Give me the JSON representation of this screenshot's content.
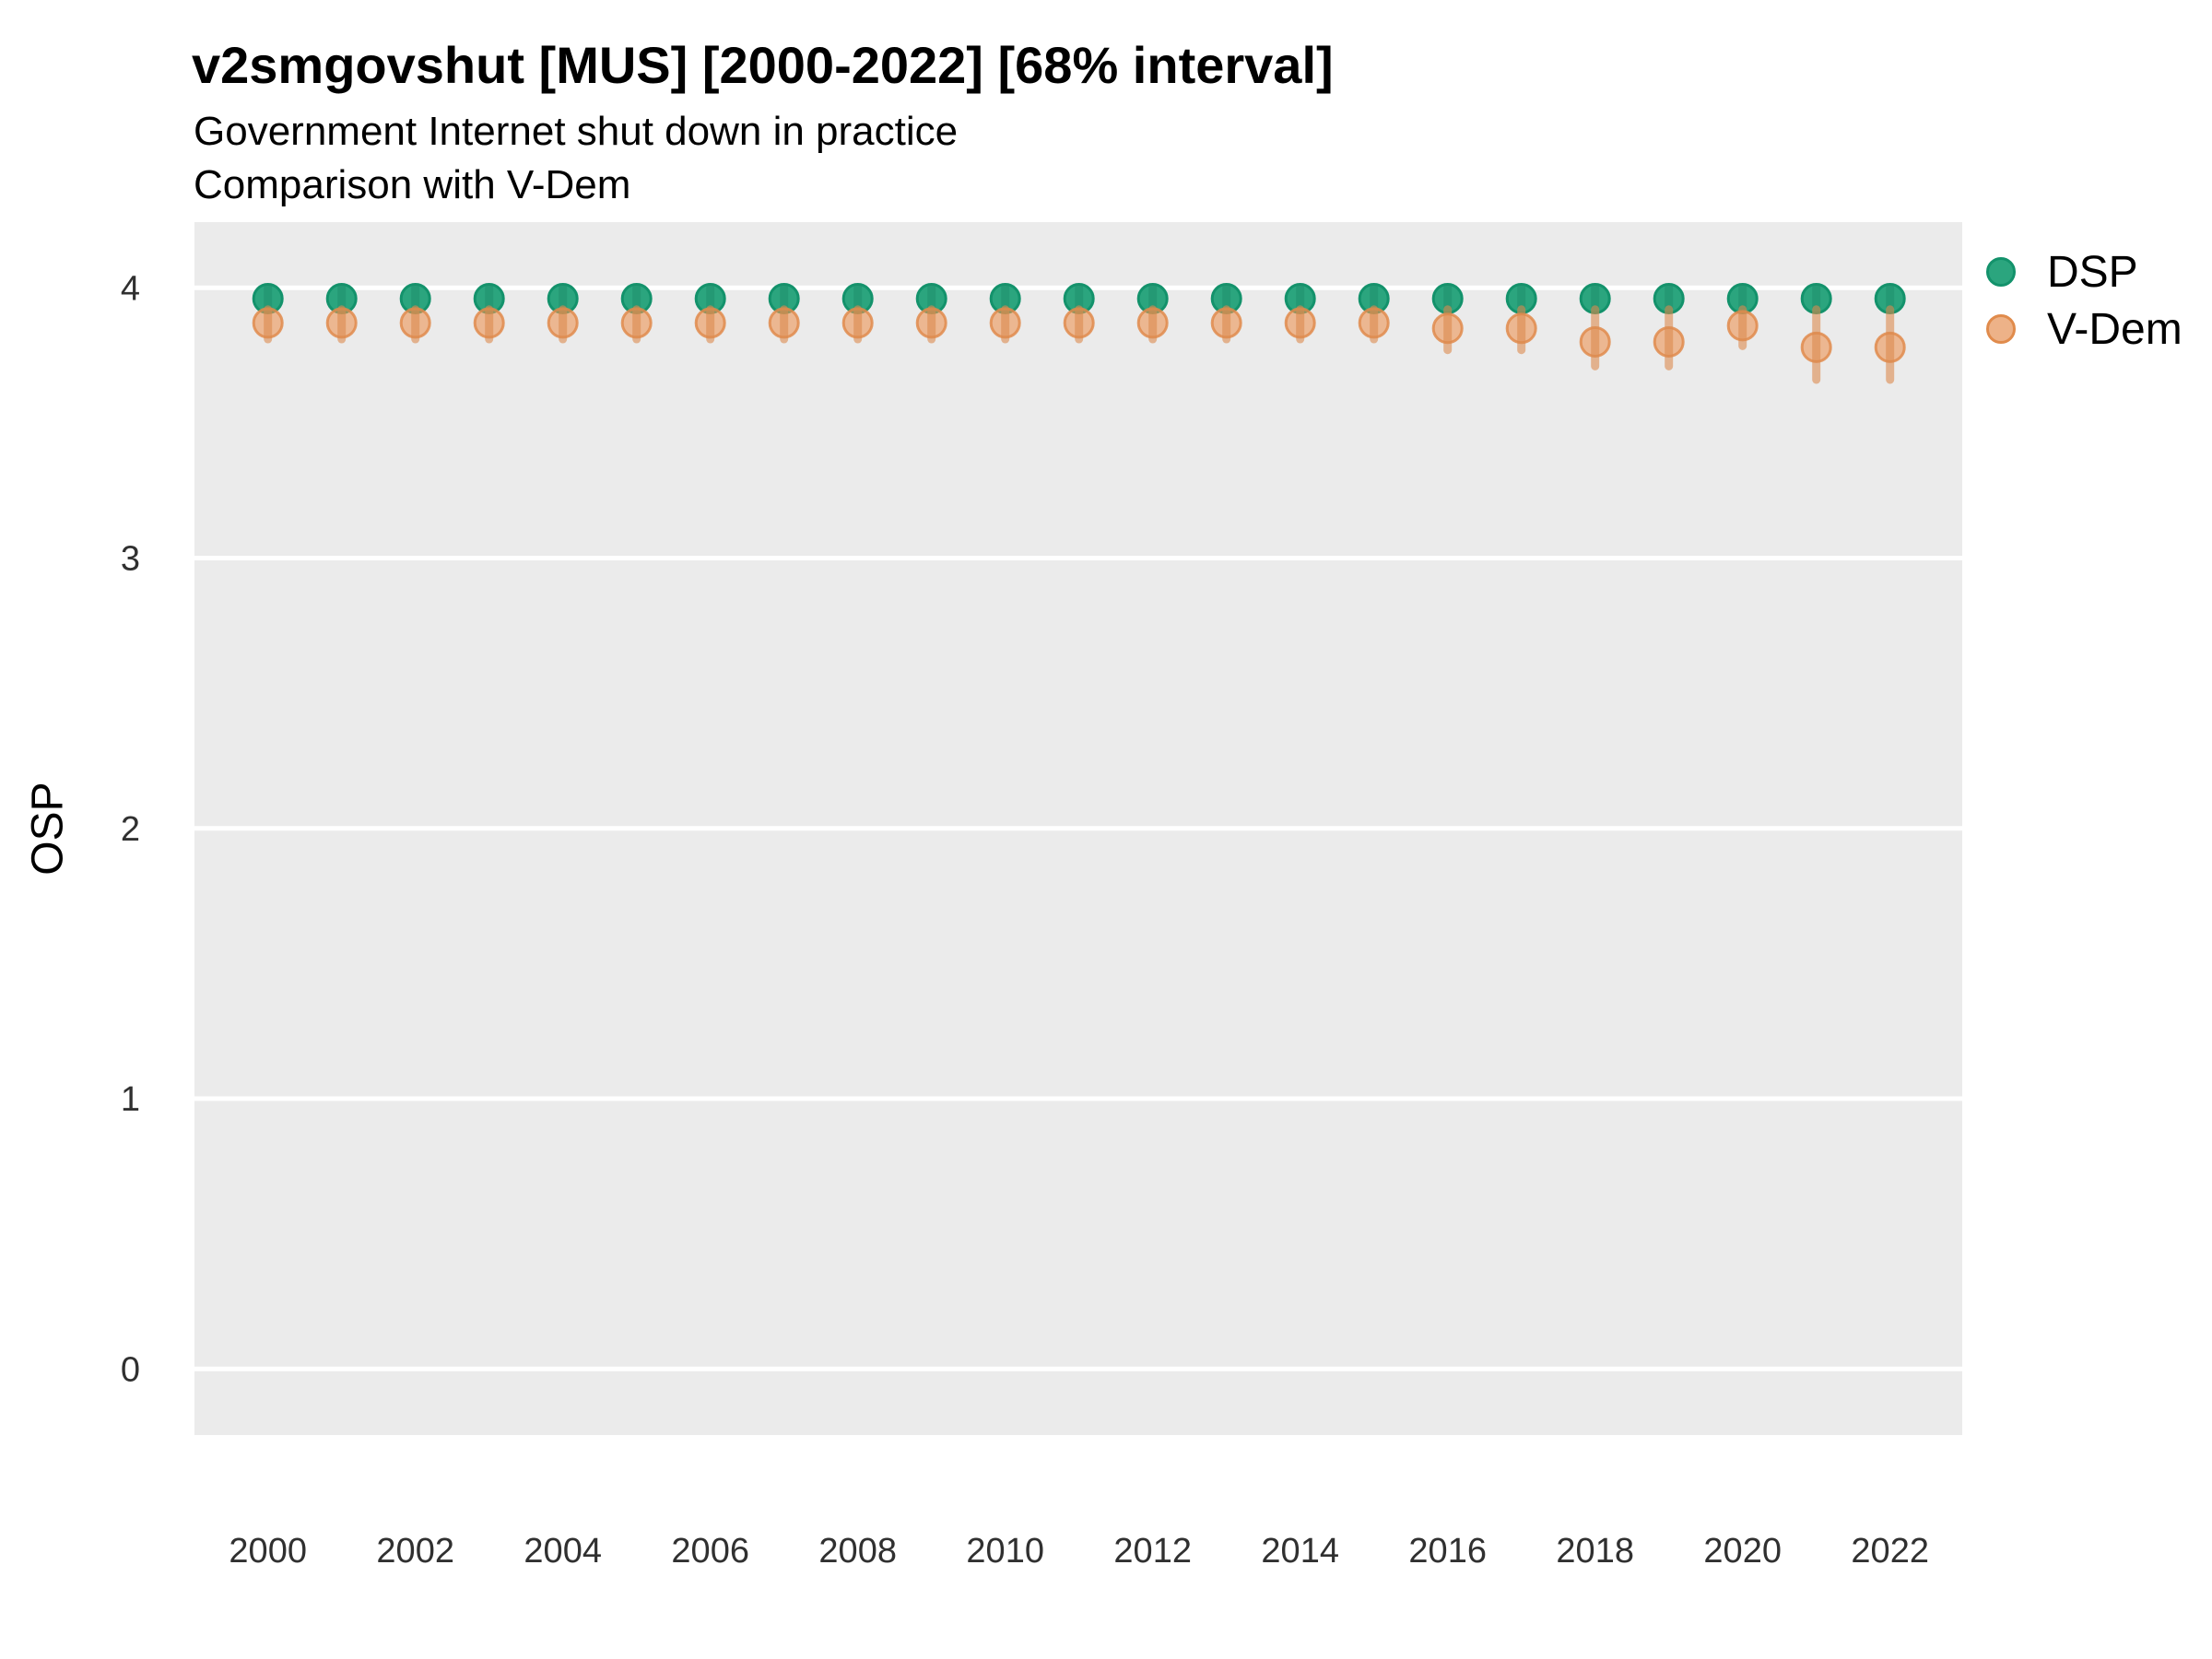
{
  "chart_data": {
    "type": "scatter",
    "title": "v2smgovshut [MUS] [2000-2022] [68% interval]",
    "subtitle": "Government Internet shut down in practice",
    "subtitle2": "Comparison with V-Dem",
    "ylabel": "OSP",
    "xlabel": "",
    "interval_label": "68% interval",
    "x": [
      2000,
      2001,
      2002,
      2003,
      2004,
      2005,
      2006,
      2007,
      2008,
      2009,
      2010,
      2011,
      2012,
      2013,
      2014,
      2015,
      2016,
      2017,
      2018,
      2019,
      2020,
      2021,
      2022
    ],
    "x_ticks": [
      2000,
      2002,
      2004,
      2006,
      2008,
      2010,
      2012,
      2014,
      2016,
      2018,
      2020,
      2022
    ],
    "x_tick_labels": [
      "2000",
      "2002",
      "2004",
      "2006",
      "2008",
      "2010",
      "2012",
      "2014",
      "2016",
      "2018",
      "2020",
      "2022"
    ],
    "yticks": [
      0,
      1,
      2,
      3,
      4
    ],
    "ytick_labels": [
      "0",
      "1",
      "2",
      "3",
      "4"
    ],
    "ylim": [
      -0.25,
      4.24
    ],
    "grid": "major horizontal white gridlines on gray panel, no minor, no axis lines",
    "legend_position": "right",
    "series": [
      {
        "name": "DSP",
        "values": [
          3.96,
          3.96,
          3.96,
          3.96,
          3.96,
          3.96,
          3.96,
          3.96,
          3.96,
          3.96,
          3.96,
          3.96,
          3.96,
          3.96,
          3.96,
          3.96,
          3.96,
          3.96,
          3.96,
          3.96,
          3.96,
          3.96,
          3.96
        ],
        "err_lo": [
          3.925,
          3.925,
          3.925,
          3.925,
          3.925,
          3.925,
          3.925,
          3.925,
          3.925,
          3.925,
          3.925,
          3.925,
          3.925,
          3.925,
          3.925,
          3.925,
          3.925,
          3.925,
          3.925,
          3.925,
          3.925,
          3.925,
          3.925
        ],
        "err_hi": [
          4.0,
          4.0,
          4.0,
          4.0,
          4.0,
          4.0,
          4.0,
          4.0,
          4.0,
          4.0,
          4.0,
          4.0,
          4.0,
          4.0,
          4.0,
          4.0,
          4.0,
          4.0,
          4.0,
          4.0,
          4.0,
          4.0,
          4.0
        ]
      },
      {
        "name": "V-Dem",
        "values": [
          3.87,
          3.87,
          3.87,
          3.87,
          3.87,
          3.87,
          3.87,
          3.87,
          3.87,
          3.87,
          3.87,
          3.87,
          3.87,
          3.87,
          3.87,
          3.87,
          3.85,
          3.85,
          3.8,
          3.8,
          3.86,
          3.78,
          3.78
        ],
        "err_lo": [
          3.81,
          3.81,
          3.81,
          3.81,
          3.81,
          3.81,
          3.81,
          3.81,
          3.81,
          3.81,
          3.81,
          3.81,
          3.81,
          3.81,
          3.81,
          3.81,
          3.77,
          3.77,
          3.71,
          3.71,
          3.785,
          3.66,
          3.66
        ],
        "err_hi": [
          3.92,
          3.92,
          3.92,
          3.92,
          3.92,
          3.92,
          3.92,
          3.92,
          3.92,
          3.92,
          3.92,
          3.92,
          3.92,
          3.92,
          3.92,
          3.92,
          3.92,
          3.92,
          3.92,
          3.92,
          3.92,
          3.92,
          3.92
        ]
      }
    ]
  },
  "colors": {
    "background": "#FFFFFF",
    "panel": "#EBEBEB",
    "gridline": "#FFFFFF",
    "axis_text": "#303030",
    "dsp_fill": "#2BA57E",
    "dsp_stroke": "#13926B",
    "dsp_bar": "#1E8E69",
    "vdem_fill": "#ED9455",
    "vdem_stroke": "#E08B4C",
    "vdem_bar": "#DC8B4F"
  }
}
